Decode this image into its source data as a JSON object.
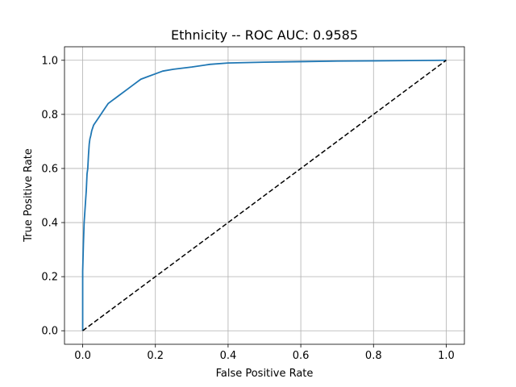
{
  "chart_data": {
    "type": "line",
    "title": "Ethnicity -- ROC AUC: 0.9585",
    "xlabel": "False Positive Rate",
    "ylabel": "True Positive Rate",
    "xlim": [
      -0.05,
      1.05
    ],
    "ylim": [
      -0.05,
      1.05
    ],
    "grid": true,
    "x_ticks": [
      "0.0",
      "0.2",
      "0.4",
      "0.6",
      "0.8",
      "1.0"
    ],
    "y_ticks": [
      "0.0",
      "0.2",
      "0.4",
      "0.6",
      "0.8",
      "1.0"
    ],
    "series": [
      {
        "color": "#1f77b4",
        "style": "solid",
        "x": [
          0.0,
          0.0,
          0.002,
          0.004,
          0.006,
          0.008,
          0.01,
          0.012,
          0.014,
          0.016,
          0.018,
          0.02,
          0.022,
          0.025,
          0.03,
          0.035,
          0.04,
          0.05,
          0.06,
          0.07,
          0.08,
          0.09,
          0.1,
          0.12,
          0.14,
          0.16,
          0.18,
          0.2,
          0.22,
          0.25,
          0.3,
          0.35,
          0.4,
          0.5,
          0.6,
          0.7,
          0.8,
          0.9,
          1.0
        ],
        "y": [
          0.0,
          0.22,
          0.32,
          0.4,
          0.44,
          0.48,
          0.52,
          0.58,
          0.6,
          0.65,
          0.69,
          0.71,
          0.72,
          0.74,
          0.76,
          0.77,
          0.78,
          0.8,
          0.82,
          0.84,
          0.85,
          0.86,
          0.87,
          0.89,
          0.91,
          0.93,
          0.94,
          0.95,
          0.96,
          0.967,
          0.975,
          0.985,
          0.99,
          0.993,
          0.995,
          0.997,
          0.998,
          0.999,
          1.0
        ]
      },
      {
        "color": "#000000",
        "style": "dashed",
        "x": [
          0,
          1
        ],
        "y": [
          0,
          1
        ]
      }
    ]
  }
}
